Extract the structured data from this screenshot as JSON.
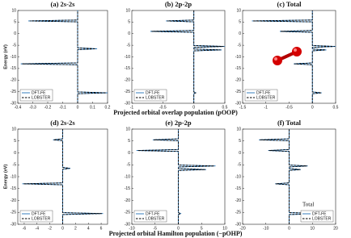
{
  "chart_data": [
    {
      "type": "line",
      "title": "(a) 2s-2s",
      "ylabel": "Energy (eV)",
      "y": [
        -30,
        -25.9,
        -25.5,
        -25.1,
        -13.4,
        -13,
        -12.6,
        -6.9,
        -6.5,
        -6.1,
        5.1,
        5.5,
        5.9,
        10
      ],
      "series": [
        {
          "name": "DFT-FE",
          "color": "#1f6fb5",
          "linestyle": "solid",
          "values": [
            0,
            0,
            0.2,
            0,
            0,
            -0.38,
            0,
            0,
            0.13,
            0,
            0,
            -0.33,
            0,
            0
          ]
        },
        {
          "name": "LOBSTER",
          "color": "#000000",
          "linestyle": "dashed",
          "values": [
            0,
            0,
            0.19,
            0,
            0,
            -0.37,
            0,
            0,
            0.12,
            0,
            0,
            -0.32,
            0,
            0
          ]
        }
      ],
      "xlim": [
        -0.4,
        0.2
      ],
      "xticks": [
        -0.4,
        -0.3,
        -0.2,
        -0.1,
        0,
        0.1,
        0.2
      ],
      "ylim": [
        -30,
        10
      ],
      "yticks": [
        -30,
        -25,
        -20,
        -15,
        -10,
        -5,
        0,
        5,
        10
      ],
      "legend": "lower left"
    },
    {
      "type": "line",
      "title": "(b) 2p-2p",
      "xlabel": "Projected orbital overlap population (pOOP)",
      "y": [
        -30,
        -25.9,
        -25.5,
        -25.1,
        -7.4,
        -7,
        -6.6,
        -5.9,
        -5.5,
        -5.1,
        0.6,
        1,
        1.4,
        5.1,
        5.5,
        5.9,
        10
      ],
      "series": [
        {
          "name": "DFT-FE",
          "color": "#1f6fb5",
          "linestyle": "solid",
          "values": [
            0,
            0,
            0.03,
            0,
            0,
            0.45,
            0,
            0,
            0.5,
            0,
            0,
            -0.7,
            0,
            0,
            -0.45,
            0,
            0
          ]
        },
        {
          "name": "LOBSTER",
          "color": "#000000",
          "linestyle": "dashed",
          "values": [
            0,
            0,
            0.03,
            0,
            0,
            0.43,
            0,
            0,
            0.48,
            0,
            0,
            -0.68,
            0,
            0,
            -0.43,
            0,
            0
          ]
        }
      ],
      "xlim": [
        -1,
        0.5
      ],
      "xticks": [
        -1,
        -0.5,
        0,
        0.5
      ],
      "ylim": [
        -30,
        10
      ],
      "yticks": [
        -30,
        -25,
        -20,
        -15,
        -10,
        -5,
        0,
        5,
        10
      ],
      "legend": "lower left"
    },
    {
      "type": "line",
      "title": "(c) Total",
      "y": [
        -30,
        -25.9,
        -25.5,
        -25.1,
        -13.4,
        -13,
        -12.6,
        -7.4,
        -7,
        -6.6,
        -5.9,
        -5.5,
        -5.1,
        0.6,
        1,
        1.4,
        5.1,
        5.5,
        5.9,
        10
      ],
      "series": [
        {
          "name": "DFT-FE",
          "color": "#1f6fb5",
          "linestyle": "solid",
          "values": [
            0,
            0,
            0.2,
            0,
            0,
            -0.4,
            0,
            0,
            0.3,
            0,
            0,
            0.5,
            0,
            0,
            -0.7,
            0,
            0,
            -1.3,
            0,
            0
          ]
        },
        {
          "name": "LOBSTER",
          "color": "#000000",
          "linestyle": "dashed",
          "values": [
            0,
            0,
            0.19,
            0,
            0,
            -0.39,
            0,
            0,
            0.28,
            0,
            0,
            0.48,
            0,
            0,
            -0.68,
            0,
            0,
            -1.28,
            0,
            0
          ]
        }
      ],
      "xlim": [
        -1.5,
        0.5
      ],
      "xticks": [
        -1.5,
        -1,
        -0.5,
        0,
        0.5
      ],
      "ylim": [
        -30,
        10
      ],
      "yticks": [
        -30,
        -25,
        -20,
        -15,
        -10,
        -5,
        0,
        5,
        10
      ],
      "legend": "lower left"
    },
    {
      "type": "line",
      "title": "(d) 2s-2s",
      "ylabel": "Energy (eV)",
      "y": [
        -30,
        -25.9,
        -25.5,
        -25.1,
        -13.4,
        -13,
        -12.6,
        -6.9,
        -6.5,
        -6.1,
        5.1,
        5.5,
        5.9,
        10
      ],
      "series": [
        {
          "name": "DFT-FE",
          "color": "#1f6fb5",
          "linestyle": "solid",
          "values": [
            0,
            0,
            6.3,
            0,
            0,
            -6.3,
            0,
            0,
            1.2,
            0,
            0,
            -1.5,
            0,
            0
          ]
        },
        {
          "name": "LOBSTER",
          "color": "#000000",
          "linestyle": "dashed",
          "values": [
            0,
            0,
            6.1,
            0,
            0,
            -6.1,
            0,
            0,
            1.1,
            0,
            0,
            -1.4,
            0,
            0
          ]
        }
      ],
      "xlim": [
        -7,
        7
      ],
      "xticks": [
        -6,
        -4,
        -2,
        0,
        2,
        4,
        6
      ],
      "ylim": [
        -30,
        10
      ],
      "yticks": [
        -30,
        -25,
        -20,
        -15,
        -10,
        -5,
        0,
        5,
        10
      ],
      "legend": "lower left"
    },
    {
      "type": "line",
      "title": "(e) 2p-2p",
      "xlabel": "Projected orbital Hamilton population (−pOHP)",
      "y": [
        -30,
        -25.9,
        -25.5,
        -25.1,
        -7.4,
        -7,
        -6.6,
        -5.9,
        -5.5,
        -5.1,
        0.6,
        1,
        1.4,
        5.1,
        5.5,
        5.9,
        10
      ],
      "series": [
        {
          "name": "DFT-FE",
          "color": "#1f6fb5",
          "linestyle": "solid",
          "values": [
            0,
            0,
            0.5,
            0,
            0,
            6,
            0,
            0,
            8,
            0,
            0,
            -9,
            0,
            0,
            -5.5,
            0,
            0
          ]
        },
        {
          "name": "LOBSTER",
          "color": "#000000",
          "linestyle": "dashed",
          "values": [
            0,
            0,
            0.5,
            0,
            0,
            5.8,
            0,
            0,
            7.7,
            0,
            0,
            -8.7,
            0,
            0,
            -5.3,
            0,
            0
          ]
        }
      ],
      "xlim": [
        -10,
        10
      ],
      "xticks": [
        -10,
        -5,
        0,
        5,
        10
      ],
      "ylim": [
        -30,
        10
      ],
      "yticks": [
        -30,
        -25,
        -20,
        -15,
        -10,
        -5,
        0,
        5,
        10
      ],
      "legend": "lower left"
    },
    {
      "type": "line",
      "title": "(f) Total",
      "annotation": "Total",
      "y": [
        -30,
        -25.9,
        -25.5,
        -25.1,
        -13.4,
        -13,
        -12.6,
        -7.4,
        -7,
        -6.6,
        -5.9,
        -5.5,
        -5.1,
        0.6,
        1,
        1.4,
        5.1,
        5.5,
        5.9,
        10
      ],
      "series": [
        {
          "name": "DFT-FE",
          "color": "#1f6fb5",
          "linestyle": "solid",
          "values": [
            0,
            0,
            17,
            0,
            0,
            -6,
            0,
            0,
            5,
            0,
            0,
            8,
            0,
            0,
            -9,
            0,
            0,
            -13,
            0,
            0
          ]
        },
        {
          "name": "LOBSTER",
          "color": "#000000",
          "linestyle": "dashed",
          "values": [
            0,
            0,
            16.5,
            0,
            0,
            -5.8,
            0,
            0,
            4.8,
            0,
            0,
            7.7,
            0,
            0,
            -8.7,
            0,
            0,
            -12.6,
            0,
            0
          ]
        }
      ],
      "xlim": [
        -20,
        20
      ],
      "xticks": [
        -20,
        -10,
        0,
        10,
        20
      ],
      "ylim": [
        -30,
        10
      ],
      "yticks": [
        -30,
        -25,
        -20,
        -15,
        -10,
        -5,
        0,
        5,
        10
      ],
      "legend": "lower right"
    }
  ]
}
